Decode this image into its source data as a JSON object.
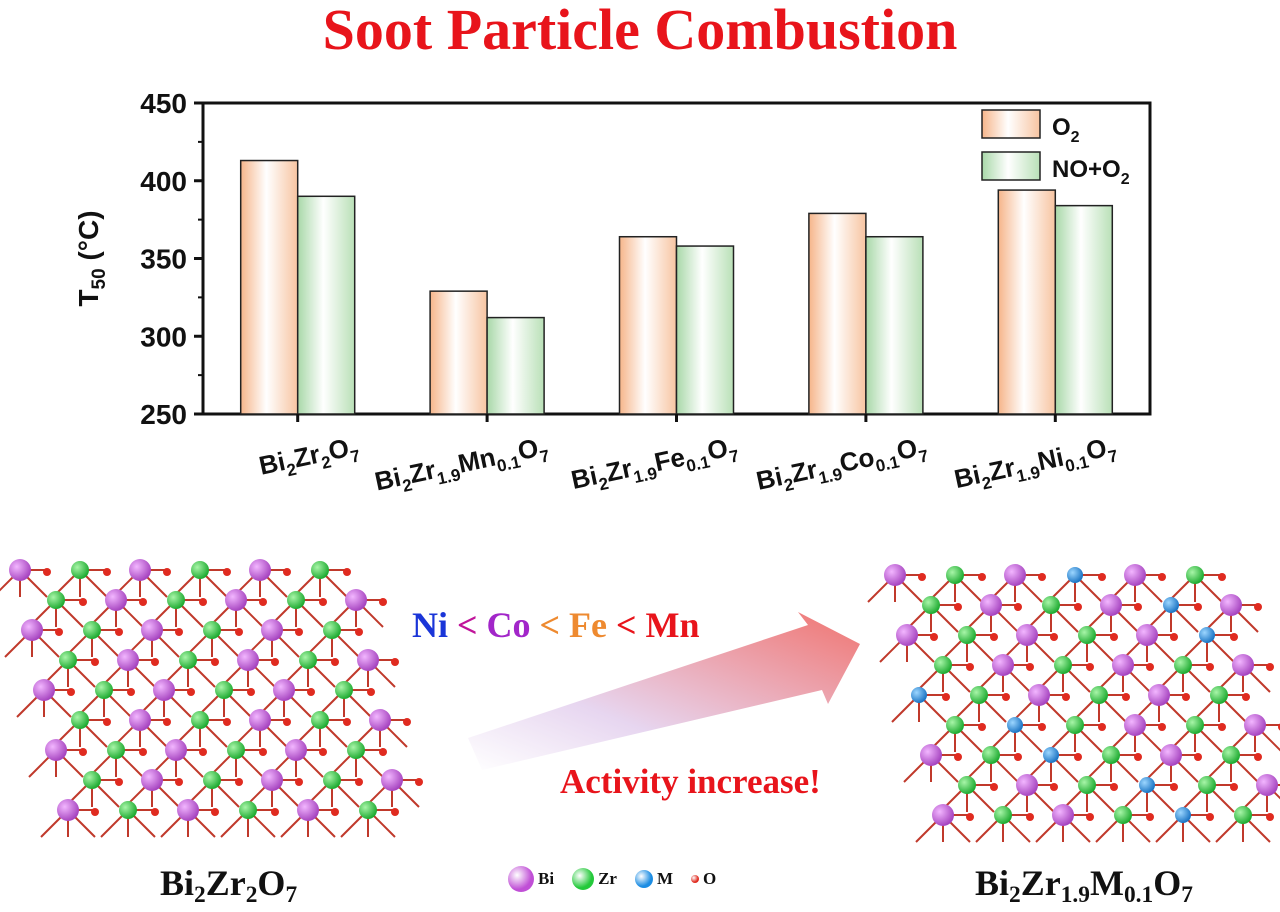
{
  "title": "Soot Particle Combustion",
  "chart_data": {
    "type": "bar",
    "categories": [
      {
        "base": "Bi",
        "sub1": "2",
        "mid": "Zr",
        "sub2": "2",
        "mid2": "O",
        "sub3": "7"
      },
      {
        "base": "Bi",
        "sub1": "2",
        "mid": "Zr",
        "sub2": "1.9",
        "mid2": "Mn",
        "sub3": "0.1",
        "end": "O",
        "sub4": "7"
      },
      {
        "base": "Bi",
        "sub1": "2",
        "mid": "Zr",
        "sub2": "1.9",
        "mid2": "Fe",
        "sub3": "0.1",
        "end": "O",
        "sub4": "7"
      },
      {
        "base": "Bi",
        "sub1": "2",
        "mid": "Zr",
        "sub2": "1.9",
        "mid2": "Co",
        "sub3": "0.1",
        "end": "O",
        "sub4": "7"
      },
      {
        "base": "Bi",
        "sub1": "2",
        "mid": "Zr",
        "sub2": "1.9",
        "mid2": "Ni",
        "sub3": "0.1",
        "end": "O",
        "sub4": "7"
      }
    ],
    "series": [
      {
        "name": "O2",
        "label_main": "O",
        "label_sub": "2",
        "values": [
          413,
          329,
          364,
          379,
          394
        ],
        "color": "#fbd9c2"
      },
      {
        "name": "NO+O2",
        "label_main": "NO+O",
        "label_sub": "2",
        "values": [
          390,
          312,
          358,
          364,
          384
        ],
        "color": "#cfe8cd"
      }
    ],
    "ylabel_main": "T",
    "ylabel_sub": "50",
    "ylabel_unit": " (°C)",
    "ylim": [
      250,
      450
    ],
    "yticks": [
      250,
      300,
      350,
      400,
      450
    ],
    "legend_position": "top-right",
    "grid": false
  },
  "scheme": {
    "left_label": {
      "a": "Bi",
      "s1": "2",
      "b": "Zr",
      "s2": "2",
      "c": "O",
      "s3": "7"
    },
    "right_label": {
      "a": "Bi",
      "s1": "2",
      "b": "Zr",
      "s2": "1.9",
      "c": "M",
      "s3": "0.1",
      "d": "O",
      "s4": "7"
    },
    "order": [
      {
        "text": "Ni",
        "color": "#1a35d8"
      },
      {
        "text": " < ",
        "color": "#c0149a"
      },
      {
        "text": "Co",
        "color": "#a226c9"
      },
      {
        "text": " < ",
        "color": "#ee8a30"
      },
      {
        "text": "Fe",
        "color": "#ee8a30"
      },
      {
        "text": " < ",
        "color": "#e8141b"
      },
      {
        "text": "Mn",
        "color": "#e8141b"
      }
    ],
    "activity_text": "Activity increase!",
    "atom_legend": [
      {
        "label": "Bi",
        "color": "#c04fd6",
        "size": 26
      },
      {
        "label": "Zr",
        "color": "#23c93a",
        "size": 22
      },
      {
        "label": "M",
        "color": "#1c8de3",
        "size": 18
      },
      {
        "label": "O",
        "color": "#e02b20",
        "size": 8
      }
    ]
  }
}
